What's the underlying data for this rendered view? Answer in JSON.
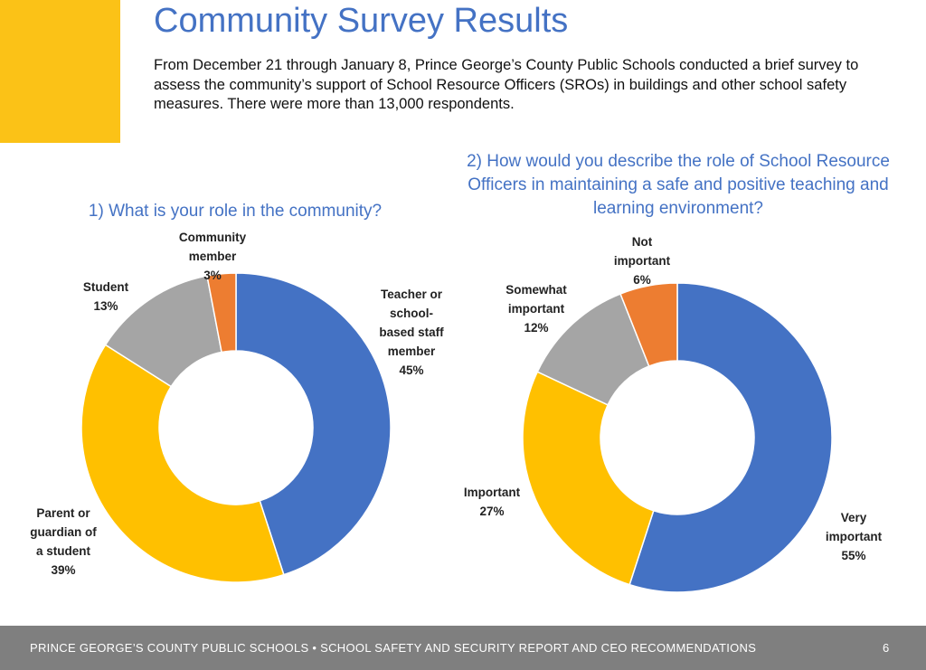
{
  "page": {
    "title": "Community Survey Results",
    "intro": "From December 21 through January 8, Prince George’s County Public Schools conducted a brief survey to assess the community’s support of School Resource Officers (SROs) in buildings and other school safety measures. There were more than 13,000 respondents.",
    "accent_color": "#FBC217",
    "title_color": "#4472C4"
  },
  "chart_data": [
    {
      "type": "pie",
      "donut": true,
      "title": "1) What is your role in the community?",
      "categories": [
        "Teacher or school-based staff member",
        "Parent or guardian of a student",
        "Student",
        "Community member"
      ],
      "values": [
        45,
        39,
        13,
        3
      ],
      "colors": [
        "#4472C4",
        "#FFC000",
        "#A5A5A5",
        "#ED7D31"
      ],
      "labels": [
        {
          "lines": [
            "Teacher or",
            "school-",
            "based staff",
            "member"
          ],
          "pct": "45%"
        },
        {
          "lines": [
            "Parent or",
            "guardian of",
            "a student"
          ],
          "pct": "39%"
        },
        {
          "lines": [
            "Student"
          ],
          "pct": "13%"
        },
        {
          "lines": [
            "Community",
            "member"
          ],
          "pct": "3%"
        }
      ]
    },
    {
      "type": "pie",
      "donut": true,
      "title": "2) How would you describe the role of School Resource Officers in maintaining a safe and positive teaching and learning environment?",
      "categories": [
        "Very important",
        "Important",
        "Somewhat important",
        "Not important"
      ],
      "values": [
        55,
        27,
        12,
        6
      ],
      "colors": [
        "#4472C4",
        "#FFC000",
        "#A5A5A5",
        "#ED7D31"
      ],
      "labels": [
        {
          "lines": [
            "Very",
            "important"
          ],
          "pct": "55%"
        },
        {
          "lines": [
            "Important"
          ],
          "pct": "27%"
        },
        {
          "lines": [
            "Somewhat",
            "important"
          ],
          "pct": "12%"
        },
        {
          "lines": [
            "Not",
            "important"
          ],
          "pct": "6%"
        }
      ]
    }
  ],
  "footer": {
    "text": "PRINCE GEORGE’S COUNTY PUBLIC SCHOOLS • SCHOOL SAFETY AND SECURITY REPORT AND CEO RECOMMENDATIONS",
    "page_number": "6"
  }
}
